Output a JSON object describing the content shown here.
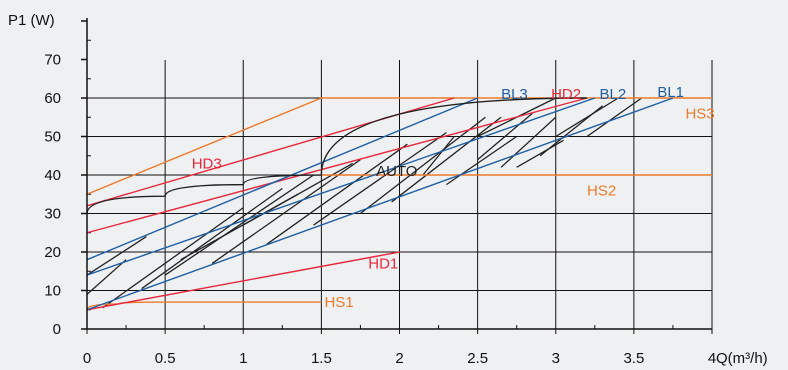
{
  "chart_data": {
    "type": "line",
    "ylabel": "P1 (W)",
    "xlabel": "Q(m³/h)",
    "xlim": [
      0,
      4
    ],
    "ylim": [
      0,
      80
    ],
    "x_ticks": [
      {
        "value": 0,
        "label": "0"
      },
      {
        "value": 0.5,
        "label": "0.5"
      },
      {
        "value": 1,
        "label": "1"
      },
      {
        "value": 1.5,
        "label": "1.5"
      },
      {
        "value": 2,
        "label": "2"
      },
      {
        "value": 2.5,
        "label": "2.5"
      },
      {
        "value": 3,
        "label": "3"
      },
      {
        "value": 3.5,
        "label": "3.5"
      },
      {
        "value": 4,
        "label": "4"
      }
    ],
    "y_ticks": [
      {
        "value": 0,
        "label": "0"
      },
      {
        "value": 10,
        "label": "10"
      },
      {
        "value": 20,
        "label": "20"
      },
      {
        "value": 30,
        "label": "30"
      },
      {
        "value": 40,
        "label": "40"
      },
      {
        "value": 50,
        "label": "50"
      },
      {
        "value": 60,
        "label": "60"
      },
      {
        "value": 70,
        "label": "70"
      }
    ],
    "grid": true,
    "colors": {
      "red": "#e8283c",
      "blue": "#1f5fa8",
      "orange": "#ee7a2a",
      "black": "#222222",
      "background": "#eef0f1",
      "grid": "#111111"
    },
    "series": [
      {
        "name": "HS1",
        "color": "#ee7a2a",
        "points": [
          [
            0,
            5
          ],
          [
            0.2,
            6.5
          ],
          [
            0.5,
            7
          ],
          [
            1.5,
            7
          ]
        ]
      },
      {
        "name": "HS2",
        "color": "#ee7a2a",
        "points": [
          [
            1.5,
            40
          ],
          [
            4,
            40
          ]
        ]
      },
      {
        "name": "HS3",
        "color": "#ee7a2a",
        "points": [
          [
            0,
            35
          ],
          [
            1.5,
            60
          ],
          [
            4,
            60
          ]
        ]
      },
      {
        "name": "HD1",
        "color": "#e8283c",
        "points": [
          [
            0,
            5
          ],
          [
            2,
            20
          ]
        ]
      },
      {
        "name": "HD2",
        "color": "#e8283c",
        "points": [
          [
            0,
            25
          ],
          [
            3.2,
            60
          ]
        ]
      },
      {
        "name": "HD3",
        "color": "#e8283c",
        "points": [
          [
            0,
            32
          ],
          [
            2.35,
            60
          ]
        ]
      },
      {
        "name": "BL1",
        "color": "#1f5fa8",
        "points": [
          [
            0,
            5
          ],
          [
            3.75,
            60
          ]
        ]
      },
      {
        "name": "BL2",
        "color": "#1f5fa8",
        "points": [
          [
            0,
            14
          ],
          [
            3.25,
            60
          ]
        ]
      },
      {
        "name": "BL3",
        "color": "#1f5fa8",
        "points": [
          [
            0,
            18
          ],
          [
            2.5,
            60
          ]
        ]
      },
      {
        "name": "AUTO",
        "color": "#222222",
        "points": [
          [
            0,
            30
          ],
          [
            0.5,
            34.5
          ],
          [
            1,
            37.5
          ],
          [
            1.5,
            40
          ],
          [
            3.2,
            60
          ]
        ]
      }
    ],
    "hatch_lines": [
      [
        [
          0,
          9
        ],
        [
          0.25,
          18
        ]
      ],
      [
        [
          0,
          14
        ],
        [
          0.38,
          24
        ]
      ],
      [
        [
          0.1,
          5.5
        ],
        [
          1.0,
          31.5
        ]
      ],
      [
        [
          0.35,
          10.5
        ],
        [
          1.25,
          36.5
        ]
      ],
      [
        [
          0.5,
          14
        ],
        [
          1.45,
          40
        ]
      ],
      [
        [
          0.8,
          17
        ],
        [
          1.75,
          44
        ]
      ],
      [
        [
          1.15,
          22
        ],
        [
          2.05,
          48
        ]
      ],
      [
        [
          1.45,
          27
        ],
        [
          2.3,
          51
        ]
      ],
      [
        [
          1.75,
          30
        ],
        [
          2.55,
          55
        ]
      ],
      [
        [
          1.95,
          33
        ],
        [
          2.65,
          55
        ]
      ],
      [
        [
          2.3,
          37.5
        ],
        [
          2.75,
          50
        ]
      ],
      [
        [
          2.15,
          40
        ],
        [
          2.35,
          50
        ]
      ],
      [
        [
          2.5,
          44
        ],
        [
          2.85,
          56
        ]
      ],
      [
        [
          2.5,
          50
        ],
        [
          3.0,
          60
        ]
      ],
      [
        [
          2.75,
          42
        ],
        [
          3.05,
          49
        ]
      ],
      [
        [
          2.65,
          42
        ],
        [
          3.0,
          55
        ]
      ],
      [
        [
          3.0,
          50
        ],
        [
          3.4,
          60
        ]
      ],
      [
        [
          2.9,
          45
        ],
        [
          3.3,
          58
        ]
      ],
      [
        [
          3.2,
          50
        ],
        [
          3.55,
          60
        ]
      ],
      [
        [
          1.0,
          27
        ],
        [
          1.7,
          43
        ]
      ],
      [
        [
          0.6,
          18
        ],
        [
          1.35,
          35
        ]
      ]
    ],
    "labels": [
      {
        "text": "HS1",
        "x": 1.52,
        "y": 7,
        "color": "#ee7a2a"
      },
      {
        "text": "HS2",
        "x": 3.2,
        "y": 36,
        "color": "#ee7a2a"
      },
      {
        "text": "HS3",
        "x": 3.83,
        "y": 56,
        "color": "#ee7a2a"
      },
      {
        "text": "HD1",
        "x": 1.8,
        "y": 17,
        "color": "#e8283c"
      },
      {
        "text": "HD2",
        "x": 2.97,
        "y": 61,
        "color": "#e8283c"
      },
      {
        "text": "HD3",
        "x": 0.67,
        "y": 43,
        "color": "#e8283c"
      },
      {
        "text": "BL1",
        "x": 3.65,
        "y": 61.5,
        "color": "#1f5fa8"
      },
      {
        "text": "BL2",
        "x": 3.28,
        "y": 61,
        "color": "#1f5fa8"
      },
      {
        "text": "BL3",
        "x": 2.65,
        "y": 61,
        "color": "#1f5fa8"
      },
      {
        "text": "AUTO",
        "x": 1.85,
        "y": 41,
        "color": "#222222"
      }
    ]
  }
}
